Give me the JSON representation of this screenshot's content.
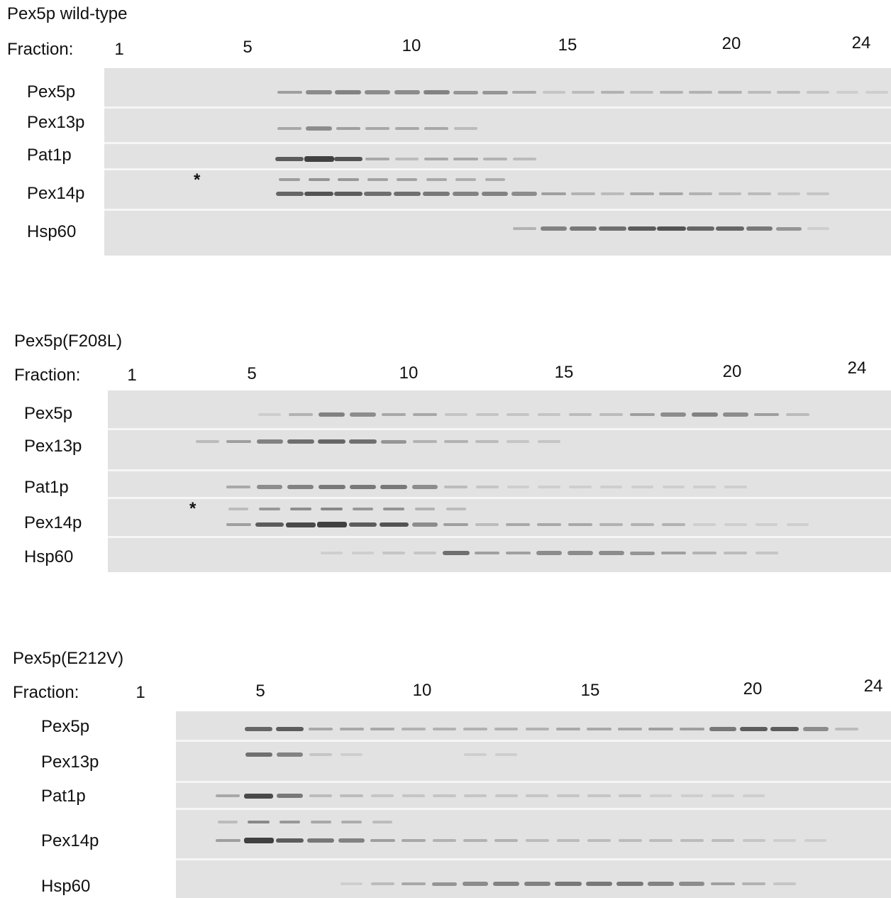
{
  "fraction_label": "Fraction:",
  "asterisk": "*",
  "panels": [
    {
      "title": "Pex5p wild-type",
      "fraction_numbers": [
        "1",
        "5",
        "10",
        "15",
        "20",
        "24"
      ],
      "rows": [
        {
          "label": "Pex5p",
          "intensities": [
            0,
            0,
            0,
            0.35,
            0.45,
            0.5,
            0.45,
            0.45,
            0.5,
            0.4,
            0.4,
            0.3,
            0.15,
            0.2,
            0.25,
            0.2,
            0.25,
            0.25,
            0.25,
            0.2,
            0.2,
            0.15,
            0.1,
            0.1
          ]
        },
        {
          "label": "Pex13p",
          "intensities": [
            0,
            0,
            0,
            0.3,
            0.45,
            0.35,
            0.3,
            0.3,
            0.3,
            0.2,
            0,
            0,
            0,
            0,
            0,
            0,
            0,
            0,
            0,
            0,
            0,
            0,
            0,
            0
          ]
        },
        {
          "label": "Pat1p",
          "intensities": [
            0,
            0,
            0,
            0.7,
            0.85,
            0.75,
            0.3,
            0.2,
            0.3,
            0.3,
            0.25,
            0.2,
            0,
            0,
            0,
            0,
            0,
            0,
            0,
            0,
            0,
            0,
            0,
            0
          ]
        },
        {
          "label": "Pex14p",
          "intensities": [
            0,
            0,
            0,
            0.65,
            0.75,
            0.7,
            0.6,
            0.6,
            0.55,
            0.5,
            0.5,
            0.45,
            0.35,
            0.25,
            0.2,
            0.3,
            0.3,
            0.25,
            0.2,
            0.2,
            0.15,
            0.15,
            0,
            0
          ]
        },
        {
          "label": "Hsp60",
          "intensities": [
            0,
            0,
            0,
            0,
            0,
            0,
            0,
            0,
            0,
            0,
            0,
            0.25,
            0.5,
            0.55,
            0.6,
            0.7,
            0.75,
            0.65,
            0.65,
            0.55,
            0.4,
            0.1,
            0,
            0
          ]
        }
      ]
    },
    {
      "title": "Pex5p(F208L)",
      "fraction_numbers": [
        "1",
        "5",
        "10",
        "15",
        "20",
        "24"
      ],
      "rows": [
        {
          "label": "Pex5p",
          "intensities": [
            0,
            0,
            0,
            0,
            0.1,
            0.25,
            0.5,
            0.45,
            0.3,
            0.3,
            0.15,
            0.15,
            0.15,
            0.15,
            0.2,
            0.2,
            0.35,
            0.45,
            0.5,
            0.45,
            0.35,
            0.2,
            0,
            0
          ]
        },
        {
          "label": "Pex13p",
          "intensities": [
            0,
            0,
            0.2,
            0.35,
            0.5,
            0.6,
            0.65,
            0.6,
            0.4,
            0.25,
            0.25,
            0.2,
            0.15,
            0.15,
            0,
            0,
            0,
            0,
            0,
            0,
            0,
            0,
            0,
            0
          ]
        },
        {
          "label": "Pat1p",
          "intensities": [
            0,
            0,
            0,
            0.3,
            0.45,
            0.5,
            0.55,
            0.55,
            0.55,
            0.45,
            0.2,
            0.15,
            0.1,
            0.1,
            0.1,
            0.1,
            0.1,
            0.1,
            0.1,
            0.1,
            0,
            0,
            0,
            0
          ]
        },
        {
          "label": "Pex14p",
          "intensities": [
            0,
            0,
            0,
            0.35,
            0.7,
            0.8,
            0.85,
            0.7,
            0.75,
            0.45,
            0.35,
            0.2,
            0.3,
            0.3,
            0.3,
            0.25,
            0.25,
            0.25,
            0.1,
            0.1,
            0.1,
            0.1,
            0,
            0
          ]
        },
        {
          "label": "Hsp60",
          "intensities": [
            0,
            0,
            0,
            0,
            0,
            0,
            0.1,
            0.1,
            0.15,
            0.15,
            0.6,
            0.35,
            0.35,
            0.45,
            0.45,
            0.45,
            0.4,
            0.35,
            0.25,
            0.2,
            0.15,
            0,
            0,
            0
          ]
        }
      ]
    },
    {
      "title": "Pex5p(E212V)",
      "fraction_numbers": [
        "1",
        "5",
        "10",
        "15",
        "20",
        "24"
      ],
      "rows": [
        {
          "label": "Pex5p",
          "intensities": [
            0,
            0,
            0,
            0.65,
            0.7,
            0.3,
            0.3,
            0.3,
            0.25,
            0.25,
            0.25,
            0.25,
            0.25,
            0.3,
            0.3,
            0.3,
            0.35,
            0.35,
            0.55,
            0.7,
            0.7,
            0.45,
            0.2,
            0
          ]
        },
        {
          "label": "Pex13p",
          "intensities": [
            0,
            0,
            0,
            0.6,
            0.5,
            0.15,
            0.1,
            0,
            0,
            0,
            0.1,
            0.1,
            0,
            0,
            0,
            0,
            0,
            0,
            0,
            0,
            0,
            0,
            0,
            0
          ]
        },
        {
          "label": "Pat1p",
          "intensities": [
            0,
            0,
            0.3,
            0.8,
            0.55,
            0.2,
            0.2,
            0.15,
            0.15,
            0.15,
            0.15,
            0.15,
            0.15,
            0.15,
            0.15,
            0.15,
            0.1,
            0.1,
            0.1,
            0.1,
            0,
            0,
            0,
            0
          ]
        },
        {
          "label": "Pex14p",
          "intensities": [
            0,
            0,
            0.35,
            0.85,
            0.7,
            0.55,
            0.5,
            0.35,
            0.3,
            0.25,
            0.25,
            0.25,
            0.2,
            0.2,
            0.2,
            0.2,
            0.2,
            0.2,
            0.2,
            0.15,
            0.1,
            0.1,
            0,
            0
          ]
        },
        {
          "label": "Hsp60",
          "intensities": [
            0,
            0,
            0,
            0,
            0,
            0,
            0.1,
            0.2,
            0.3,
            0.4,
            0.45,
            0.5,
            0.5,
            0.55,
            0.55,
            0.55,
            0.5,
            0.45,
            0.35,
            0.25,
            0.15,
            0,
            0,
            0
          ]
        }
      ]
    }
  ]
}
